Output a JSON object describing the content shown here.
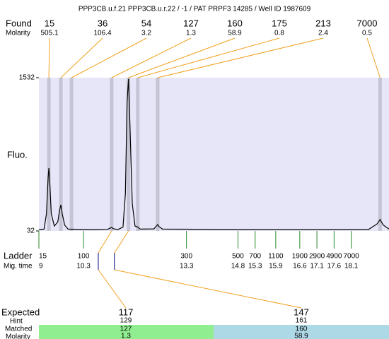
{
  "chart_data": {
    "type": "electropherogram",
    "title": "PPP3CB.u.f.21  PPP3CB.u.r.22 / -1 / PAT PRPF3 14285 / Well ID 1987609",
    "y_label": "Fluo.",
    "ylim": [
      32,
      1532
    ],
    "yticks": [
      32,
      1532
    ],
    "xlim": [
      9,
      19.2
    ],
    "found_label": "Found",
    "molarity_label": "Molarity",
    "found": {
      "sizes": [
        15,
        36,
        54,
        127,
        160,
        175,
        213,
        7000
      ],
      "molarity": [
        505.1,
        106.4,
        3.2,
        1.3,
        58.9,
        0.8,
        2.4,
        0.5
      ],
      "x": [
        9.29,
        9.64,
        9.95,
        11.12,
        11.61,
        11.88,
        12.46,
        18.94
      ]
    },
    "trace": {
      "color": "#000000",
      "x": [
        9.0,
        9.15,
        9.22,
        9.27,
        9.29,
        9.31,
        9.36,
        9.45,
        9.55,
        9.6,
        9.64,
        9.68,
        9.75,
        9.85,
        10.5,
        11.0,
        11.08,
        11.12,
        11.16,
        11.3,
        11.45,
        11.52,
        11.57,
        11.61,
        11.65,
        11.72,
        11.8,
        11.88,
        11.95,
        12.35,
        12.42,
        12.46,
        12.5,
        12.6,
        15,
        16,
        18.6,
        18.85,
        18.94,
        19.03,
        19.2
      ],
      "values": [
        45,
        50,
        200,
        560,
        647,
        560,
        200,
        80,
        120,
        230,
        288,
        200,
        90,
        50,
        45,
        48,
        60,
        67,
        55,
        45,
        70,
        400,
        1300,
        1520,
        1100,
        300,
        80,
        70,
        50,
        52,
        80,
        94,
        75,
        50,
        46,
        46,
        46,
        100,
        143,
        90,
        50
      ]
    },
    "ladder": {
      "label": "Ladder",
      "time_label": "Mig. time",
      "sizes": [
        15,
        100,
        300,
        500,
        700,
        1100,
        1900,
        2900,
        4900,
        7000
      ],
      "x": [
        9,
        10.3,
        13.3,
        14.8,
        15.3,
        15.9,
        16.6,
        17.1,
        17.6,
        18.1
      ]
    },
    "expected": {
      "label": "Expected",
      "values": [
        117,
        147
      ],
      "x": [
        10.73,
        11.2
      ]
    },
    "hint": {
      "label": "Hint",
      "values": [
        129,
        161
      ]
    },
    "matched": {
      "label": "Matched",
      "values": [
        127,
        160
      ]
    },
    "matched_molarity": {
      "label": "Molarity",
      "values": [
        1.3,
        58.9
      ]
    }
  }
}
